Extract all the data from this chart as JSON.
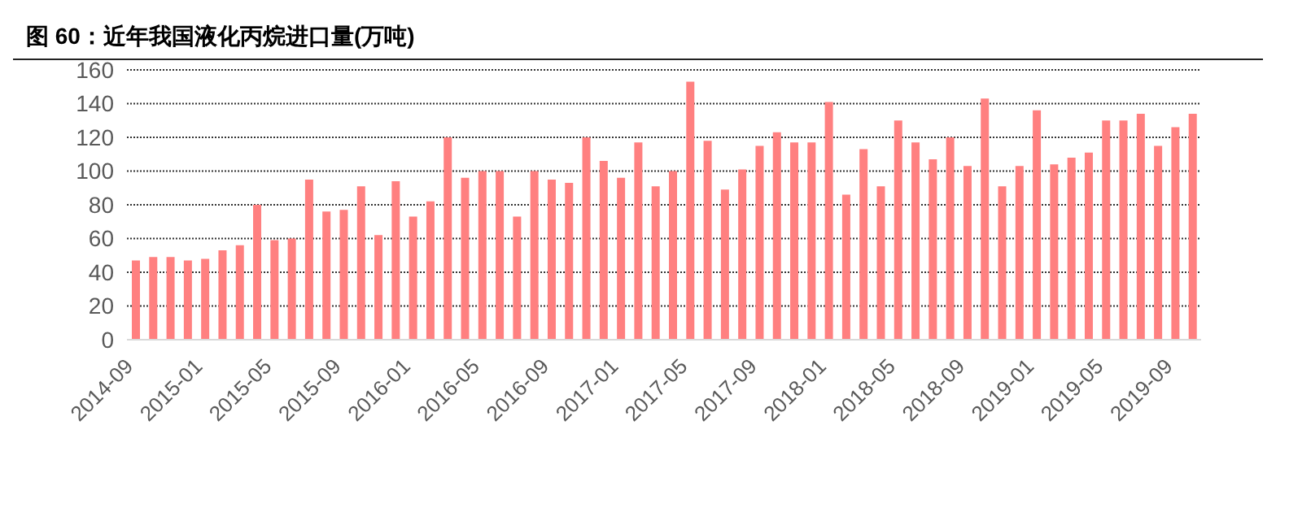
{
  "chart_data": {
    "type": "bar",
    "title": "图 60：近年我国液化丙烷进口量(万吨)",
    "categories": [
      "2014-09",
      null,
      null,
      null,
      "2015-01",
      null,
      null,
      null,
      "2015-05",
      null,
      null,
      null,
      "2015-09",
      null,
      null,
      null,
      "2016-01",
      null,
      null,
      null,
      "2016-05",
      null,
      null,
      null,
      "2016-09",
      null,
      null,
      null,
      "2017-01",
      null,
      null,
      null,
      "2017-05",
      null,
      null,
      null,
      "2017-09",
      null,
      null,
      null,
      "2018-01",
      null,
      null,
      null,
      "2018-05",
      null,
      null,
      null,
      "2018-09",
      null,
      null,
      null,
      "2019-01",
      null,
      null,
      null,
      "2019-05",
      null,
      null,
      null,
      "2019-09",
      null
    ],
    "values": [
      47,
      49,
      49,
      47,
      48,
      53,
      56,
      80,
      59,
      60,
      95,
      76,
      77,
      91,
      62,
      94,
      73,
      82,
      120,
      96,
      100,
      100,
      73,
      100,
      95,
      93,
      120,
      106,
      96,
      117,
      91,
      100,
      153,
      118,
      89,
      101,
      115,
      123,
      117,
      117,
      141,
      86,
      113,
      91,
      130,
      117,
      107,
      120,
      103,
      143,
      91,
      103,
      136,
      104,
      108,
      111,
      130,
      130,
      134,
      115,
      126,
      134
    ],
    "color": "#ff8080",
    "ylim": [
      0,
      160
    ],
    "yticks": [
      0,
      20,
      40,
      60,
      80,
      100,
      120,
      140,
      160
    ],
    "grid": "y"
  }
}
